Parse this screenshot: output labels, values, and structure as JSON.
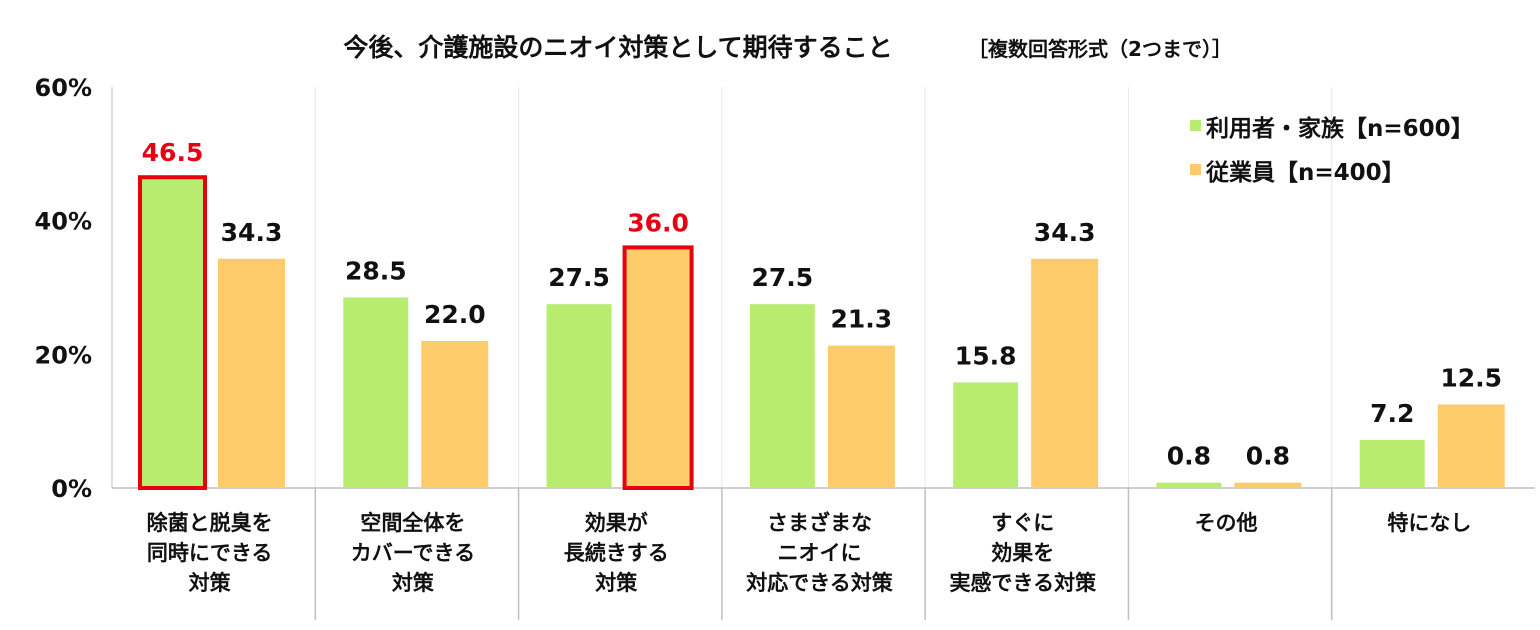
{
  "chart_data": {
    "type": "bar",
    "title": "今後、介護施設のニオイ対策として期待すること",
    "subtitle": "［複数回答形式（2つまで）］",
    "categories": [
      "除菌と脱臭を\n同時にできる\n対策",
      "空間全体を\nカバーできる\n対策",
      "効果が\n長続きする\n対策",
      "さまざまな\nニオイに\n対応できる対策",
      "すぐに\n効果を\n実感できる対策",
      "その他",
      "特になし"
    ],
    "series": [
      {
        "name": "利用者・家族【n=600】",
        "color": "#b7ec6f",
        "values": [
          46.5,
          28.5,
          27.5,
          27.5,
          15.8,
          0.8,
          7.2
        ],
        "highlighted": [
          0
        ]
      },
      {
        "name": "従業員【n=400】",
        "color": "#fecb6b",
        "values": [
          34.3,
          22.0,
          36.0,
          21.3,
          34.3,
          0.8,
          12.5
        ],
        "highlighted": [
          2
        ]
      }
    ],
    "highlight_color": "#e60012",
    "ylim": [
      0,
      60
    ],
    "yticks": [
      "0%",
      "20%",
      "40%",
      "60%"
    ],
    "ytick_values": [
      0,
      20,
      40,
      60
    ],
    "xlabel": "",
    "ylabel": "",
    "grid": "vertical separators",
    "legend_position": "top-right"
  }
}
